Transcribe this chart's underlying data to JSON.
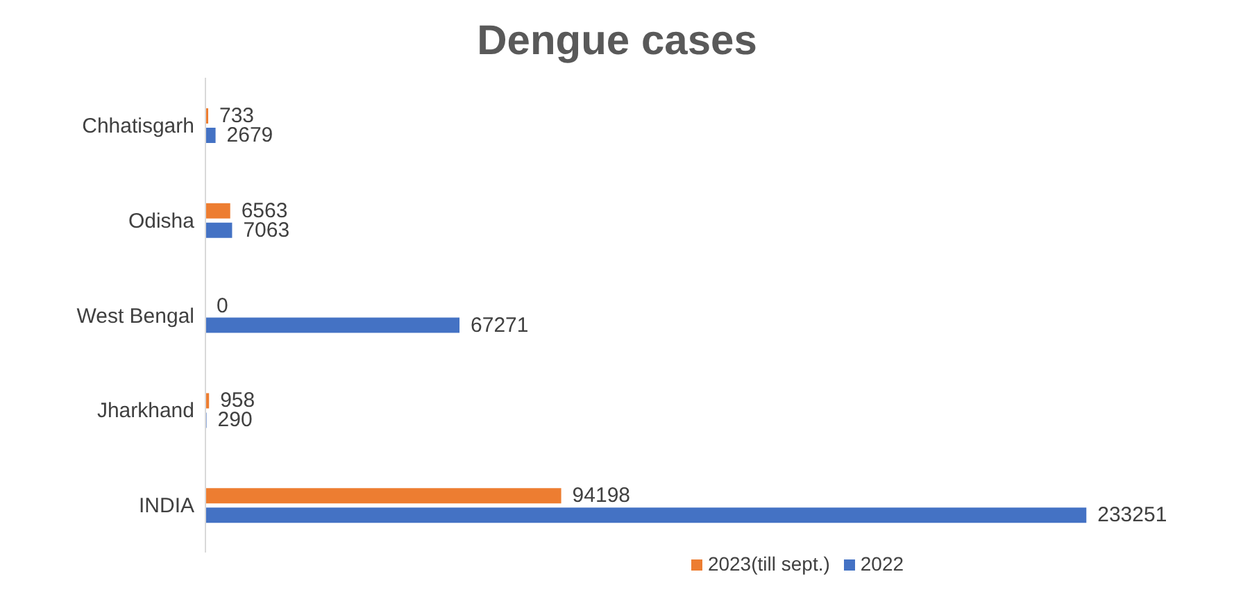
{
  "chart_data": {
    "type": "bar",
    "orientation": "horizontal",
    "title": "Dengue cases",
    "categories": [
      "Chhatisgarh",
      "Odisha",
      "West Bengal",
      "Jharkhand",
      "INDIA"
    ],
    "series": [
      {
        "name": "2023(till sept.)",
        "color": "#ed7d31",
        "values": [
          733,
          6563,
          0,
          958,
          94198
        ]
      },
      {
        "name": "2022",
        "color": "#4472c4",
        "values": [
          2679,
          7063,
          67271,
          290,
          233251
        ]
      }
    ],
    "data_labels": true,
    "legend": "bottom",
    "tick_labels": "y"
  }
}
